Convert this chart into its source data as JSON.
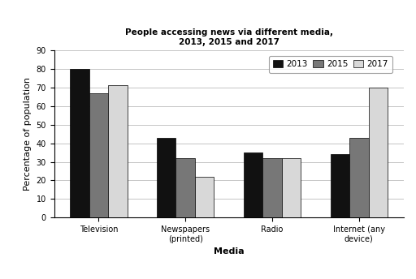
{
  "title": "People accessing news via different media,\n2013, 2015 and 2017",
  "categories": [
    "Television",
    "Newspapers\n(printed)",
    "Radio",
    "Internet (any\ndevice)"
  ],
  "years": [
    "2013",
    "2015",
    "2017"
  ],
  "values": {
    "2013": [
      80,
      43,
      35,
      34
    ],
    "2015": [
      67,
      32,
      32,
      43
    ],
    "2017": [
      71,
      22,
      32,
      70
    ]
  },
  "bar_colors": [
    "#111111",
    "#777777",
    "#d8d8d8"
  ],
  "bar_edge_colors": [
    "#000000",
    "#000000",
    "#000000"
  ],
  "xlabel": "Media",
  "ylabel": "Percentage of population",
  "ylim": [
    0,
    90
  ],
  "yticks": [
    0,
    10,
    20,
    30,
    40,
    50,
    60,
    70,
    80,
    90
  ],
  "title_fontsize": 7.5,
  "axis_label_fontsize": 8,
  "tick_fontsize": 7,
  "legend_fontsize": 7.5,
  "bar_width": 0.22,
  "background_color": "#ffffff",
  "grid_color": "#bbbbbb"
}
